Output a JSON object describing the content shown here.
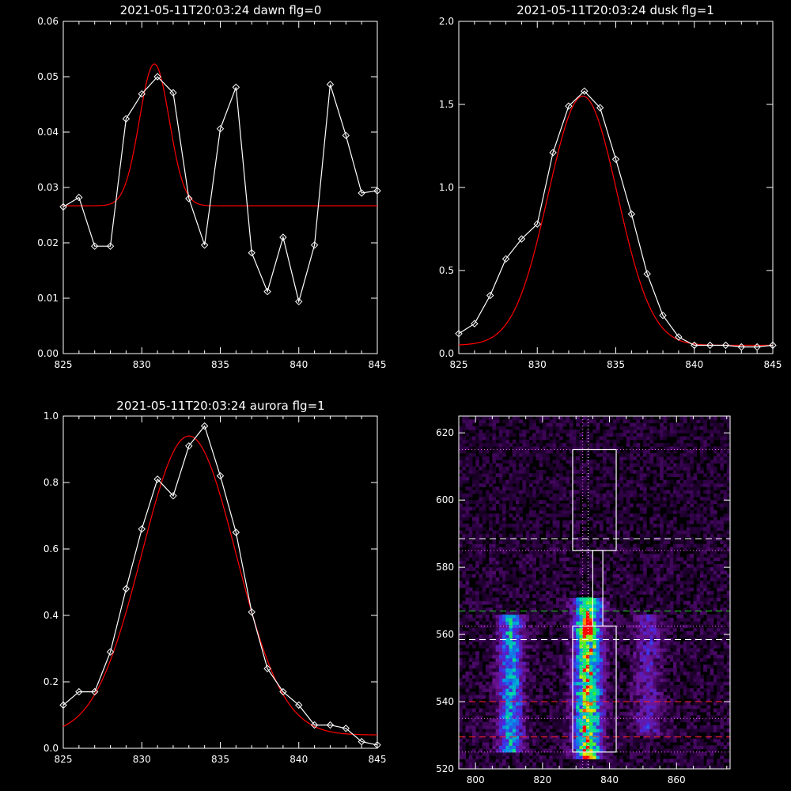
{
  "colors": {
    "background": "#000000",
    "axes": "#ffffff",
    "data": "#ffffff",
    "fit": "#ff0000"
  },
  "chart_data": [
    {
      "type": "line",
      "title": "2021-05-11T20:03:24 dawn flg=0",
      "xlim": [
        825,
        845
      ],
      "ylim": [
        0,
        0.06
      ],
      "xticks": [
        825,
        830,
        835,
        840,
        845
      ],
      "xtick_labels": [
        "825",
        "830",
        "835",
        "840",
        "845"
      ],
      "yticks": [
        0,
        0.01,
        0.02,
        0.03,
        0.04,
        0.05,
        0.06
      ],
      "ytick_labels": [
        "0.00",
        "0.01",
        "0.02",
        "0.03",
        "0.04",
        "0.05",
        "0.06"
      ],
      "series": [
        {
          "style": "white-diamonds",
          "x": [
            825,
            826,
            827,
            828,
            829,
            830,
            831,
            832,
            833,
            834,
            835,
            836,
            837,
            838,
            839,
            840,
            841,
            842,
            843,
            844,
            845
          ],
          "y": [
            0.0265,
            0.0282,
            0.0194,
            0.0194,
            0.0424,
            0.0469,
            0.05,
            0.0471,
            0.028,
            0.0196,
            0.0406,
            0.0481,
            0.0182,
            0.0112,
            0.021,
            0.0094,
            0.0196,
            0.0486,
            0.0394,
            0.029,
            0.0294
          ]
        },
        {
          "style": "red-gaussian-fit",
          "baseline": 0.0267,
          "amplitude": 0.0256,
          "center": 830.8,
          "sigma": 0.95
        }
      ]
    },
    {
      "type": "line",
      "title": "2021-05-11T20:03:24 dusk flg=1",
      "xlim": [
        825,
        845
      ],
      "ylim": [
        0,
        2.0
      ],
      "xticks": [
        825,
        830,
        835,
        840,
        845
      ],
      "xtick_labels": [
        "825",
        "830",
        "835",
        "840",
        "845"
      ],
      "yticks": [
        0,
        0.5,
        1.0,
        1.5,
        2.0
      ],
      "ytick_labels": [
        "0.0",
        "0.5",
        "1.0",
        "1.5",
        "2.0"
      ],
      "series": [
        {
          "style": "white-diamonds",
          "x": [
            825,
            826,
            827,
            828,
            829,
            830,
            831,
            832,
            833,
            834,
            835,
            836,
            837,
            838,
            839,
            840,
            841,
            842,
            843,
            844,
            845
          ],
          "y": [
            0.12,
            0.18,
            0.35,
            0.57,
            0.69,
            0.78,
            1.21,
            1.49,
            1.58,
            1.48,
            1.17,
            0.84,
            0.48,
            0.23,
            0.1,
            0.05,
            0.05,
            0.05,
            0.04,
            0.04,
            0.05
          ]
        },
        {
          "style": "red-gaussian-fit",
          "baseline": 0.05,
          "amplitude": 1.5,
          "center": 832.9,
          "sigma": 2.2
        }
      ]
    },
    {
      "type": "line",
      "title": "2021-05-11T20:03:24 aurora flg=1",
      "xlim": [
        825,
        845
      ],
      "ylim": [
        0,
        1.0
      ],
      "xticks": [
        825,
        830,
        835,
        840,
        845
      ],
      "xtick_labels": [
        "825",
        "830",
        "835",
        "840",
        "845"
      ],
      "yticks": [
        0,
        0.2,
        0.4,
        0.6,
        0.8,
        1.0
      ],
      "ytick_labels": [
        "0.0",
        "0.2",
        "0.4",
        "0.6",
        "0.8",
        "1.0"
      ],
      "series": [
        {
          "style": "white-diamonds",
          "x": [
            825,
            826,
            827,
            828,
            829,
            830,
            831,
            832,
            833,
            834,
            835,
            836,
            837,
            838,
            839,
            840,
            841,
            842,
            843,
            844,
            845
          ],
          "y": [
            0.13,
            0.17,
            0.17,
            0.29,
            0.48,
            0.66,
            0.81,
            0.76,
            0.91,
            0.97,
            0.82,
            0.65,
            0.41,
            0.24,
            0.17,
            0.13,
            0.07,
            0.07,
            0.06,
            0.02,
            0.01
          ]
        },
        {
          "style": "red-gaussian-fit",
          "baseline": 0.04,
          "amplitude": 0.9,
          "center": 833.0,
          "sigma": 3.0
        }
      ]
    },
    {
      "type": "heatmap",
      "title": "",
      "xlim": [
        795,
        876
      ],
      "ylim": [
        520,
        625
      ],
      "xticks": [
        800,
        820,
        840,
        860
      ],
      "xtick_labels": [
        "800",
        "820",
        "840",
        "860"
      ],
      "yticks": [
        520,
        540,
        560,
        580,
        600,
        620
      ],
      "ytick_labels": [
        "520",
        "540",
        "560",
        "580",
        "600",
        "620"
      ],
      "emission_columns": [
        {
          "center_x": 810,
          "width": 2.5,
          "y_range": [
            525,
            565
          ],
          "peak": 0.55
        },
        {
          "center_x": 833,
          "width": 2.8,
          "y_range": [
            523,
            570
          ],
          "peak": 0.85
        },
        {
          "center_x": 851,
          "width": 3.0,
          "y_range": [
            530,
            565
          ],
          "peak": 0.25
        }
      ],
      "hot_spot": {
        "x": 833,
        "y": 561
      },
      "boxes": [
        {
          "x": [
            829,
            842
          ],
          "y": [
            585,
            615
          ],
          "color": "#ffffff"
        },
        {
          "x": [
            835,
            838
          ],
          "y": [
            562.5,
            585
          ],
          "color": "#ffffff"
        },
        {
          "x": [
            829,
            842
          ],
          "y": [
            525,
            562.5
          ],
          "color": "#ffffff"
        }
      ],
      "dotted_horizontal_lines": [
        {
          "y": 615,
          "color": "#ff66ff"
        },
        {
          "y": 585,
          "color": "#ff66ff"
        },
        {
          "y": 562.5,
          "color": "#ff66ff"
        },
        {
          "y": 535,
          "color": "#ff66ff"
        },
        {
          "y": 525,
          "color": "#ff66ff"
        }
      ],
      "dotted_vertical_lines": [
        {
          "x": 832,
          "color": "#ff66ff"
        },
        {
          "x": 833.6,
          "color": "#ffffff"
        }
      ],
      "dashed_horizontal_lines": [
        {
          "y": 588.5,
          "color": "#ffffff"
        },
        {
          "y": 567,
          "color": "#22cc22"
        },
        {
          "y": 558.5,
          "color": "#ffffff"
        },
        {
          "y": 540,
          "color": "#ff2222"
        },
        {
          "y": 529.5,
          "color": "#ff2222"
        }
      ]
    }
  ]
}
